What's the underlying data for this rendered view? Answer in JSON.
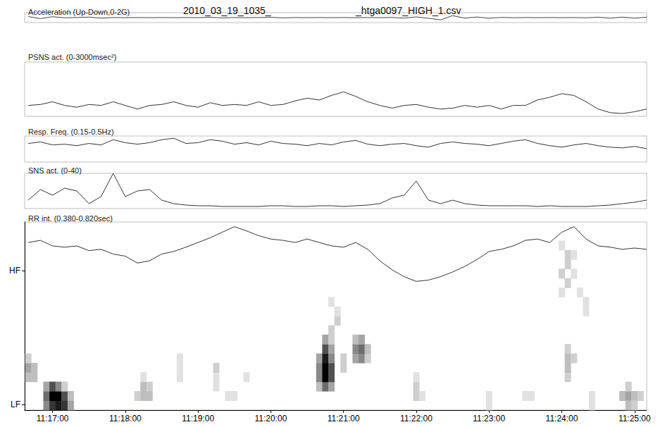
{
  "title": "2010_03_19_1035_",
  "subtitle": "_htga0097_HIGH_1.csv",
  "chart_data": [
    {
      "type": "line",
      "title": "Acceleration (Up-Down,0-2G)",
      "x": [
        40600,
        40610,
        40620,
        40630,
        40640,
        40650,
        40660,
        40670,
        40680,
        40690,
        40700,
        40710,
        40720,
        40730,
        40740,
        40750,
        40760,
        40770,
        40780,
        40790,
        40800,
        40810,
        40820,
        40830,
        40840,
        40850,
        40860,
        40870,
        40880,
        40890,
        40900,
        40910,
        40920,
        40930,
        40940,
        40950,
        40960,
        40970,
        40980,
        40990,
        41000,
        41010,
        41020,
        41030,
        41040,
        41050,
        41060,
        41070,
        41080,
        41090,
        41100,
        41110
      ],
      "values": [
        1.2,
        0.8,
        1.18,
        0.97,
        1.02,
        1.1,
        0.9,
        1.01,
        0.99,
        1.01,
        0.99,
        1.01,
        0.99,
        1.01,
        0.99,
        1.06,
        0.94,
        1.01,
        0.99,
        1.01,
        1.06,
        0.95,
        1.01,
        0.99,
        1.01,
        0.99,
        1.01,
        0.99,
        1.01,
        0.99,
        1.03,
        0.9,
        1.14,
        0.87,
        0.55,
        1.4,
        0.9,
        1.12,
        0.89,
        1.04,
        0.98,
        1.01,
        0.99,
        1.01,
        0.99,
        1.01,
        0.97,
        1.08,
        0.9,
        1.1,
        0.89,
        1.08
      ],
      "color": "#444444",
      "xlim": [
        40597,
        41110
      ],
      "ylim": [
        0,
        2
      ],
      "tick_labels": false
    },
    {
      "type": "line",
      "title": "PSNS act. (0-3000msec²)",
      "x": [
        40600,
        40610,
        40620,
        40630,
        40640,
        40650,
        40660,
        40670,
        40680,
        40690,
        40700,
        40710,
        40720,
        40730,
        40740,
        40750,
        40760,
        40770,
        40780,
        40790,
        40800,
        40810,
        40820,
        40830,
        40840,
        40850,
        40860,
        40870,
        40880,
        40890,
        40900,
        40910,
        40920,
        40930,
        40940,
        40950,
        40960,
        40970,
        40980,
        40990,
        41000,
        41010,
        41020,
        41030,
        41040,
        41050,
        41060,
        41070,
        41080,
        41090,
        41100,
        41110
      ],
      "values": [
        600,
        650,
        800,
        600,
        500,
        650,
        600,
        800,
        600,
        400,
        600,
        650,
        800,
        600,
        500,
        750,
        600,
        650,
        600,
        800,
        600,
        650,
        850,
        1000,
        900,
        1150,
        1350,
        1100,
        800,
        600,
        450,
        600,
        650,
        500,
        400,
        450,
        600,
        500,
        600,
        400,
        600,
        600,
        900,
        1050,
        1250,
        1150,
        800,
        400,
        200,
        150,
        250,
        400
      ],
      "color": "#333333",
      "xlim": [
        40597,
        41110
      ],
      "ylim": [
        0,
        3000
      ],
      "tick_labels": false
    },
    {
      "type": "line",
      "title": "Resp. Freq. (0.15-0.5Hz)",
      "x": [
        40600,
        40610,
        40620,
        40630,
        40640,
        40650,
        40660,
        40670,
        40680,
        40690,
        40700,
        40710,
        40720,
        40730,
        40740,
        40750,
        40760,
        40770,
        40780,
        40790,
        40800,
        40810,
        40820,
        40830,
        40840,
        40850,
        40860,
        40870,
        40880,
        40890,
        40900,
        40910,
        40920,
        40930,
        40940,
        40950,
        40960,
        40970,
        40980,
        40990,
        41000,
        41010,
        41020,
        41030,
        41040,
        41050,
        41060,
        41070,
        41080,
        41090,
        41100,
        41110
      ],
      "values": [
        0.4,
        0.42,
        0.38,
        0.39,
        0.37,
        0.4,
        0.38,
        0.45,
        0.41,
        0.39,
        0.41,
        0.45,
        0.47,
        0.4,
        0.41,
        0.45,
        0.43,
        0.39,
        0.41,
        0.38,
        0.43,
        0.4,
        0.39,
        0.37,
        0.4,
        0.38,
        0.42,
        0.44,
        0.39,
        0.37,
        0.39,
        0.4,
        0.37,
        0.35,
        0.4,
        0.42,
        0.4,
        0.39,
        0.37,
        0.4,
        0.43,
        0.45,
        0.4,
        0.37,
        0.35,
        0.38,
        0.4,
        0.37,
        0.35,
        0.34,
        0.36,
        0.33
      ],
      "color": "#333333",
      "xlim": [
        40597,
        41110
      ],
      "ylim": [
        0.15,
        0.5
      ],
      "tick_labels": false
    },
    {
      "type": "line",
      "title": "SNS act. (0-40)",
      "x": [
        40600,
        40610,
        40620,
        40630,
        40640,
        40650,
        40660,
        40670,
        40680,
        40690,
        40700,
        40710,
        40720,
        40730,
        40740,
        40750,
        40760,
        40770,
        40780,
        40790,
        40800,
        40810,
        40820,
        40830,
        40840,
        40850,
        40860,
        40870,
        40880,
        40890,
        40900,
        40910,
        40920,
        40930,
        40940,
        40950,
        40960,
        40970,
        40980,
        40990,
        41000,
        41010,
        41020,
        41030,
        41040,
        41050,
        41060,
        41070,
        41080,
        41090,
        41100,
        41110
      ],
      "values": [
        9.6,
        21.6,
        15.2,
        23.2,
        20,
        5.6,
        13.6,
        40,
        13.6,
        20,
        21.6,
        9.6,
        5.6,
        4,
        3.2,
        3.2,
        2.4,
        2.4,
        2.4,
        2.4,
        3.2,
        3.2,
        2.4,
        2.4,
        3.2,
        3.2,
        2.4,
        3.2,
        4,
        5.6,
        12,
        15.2,
        31.2,
        9.6,
        5.6,
        9.6,
        5.6,
        4,
        3.2,
        3.2,
        3.2,
        3.2,
        2.4,
        3.2,
        2.4,
        2.4,
        2.4,
        3.2,
        4,
        5.6,
        7.2,
        9.6
      ],
      "color": "#333333",
      "xlim": [
        40597,
        41110
      ],
      "ylim": [
        0,
        40
      ],
      "tick_labels": false
    },
    {
      "type": "line",
      "title": "RR int. (0.380-0.820sec)",
      "x": [
        40600,
        40610,
        40620,
        40630,
        40640,
        40650,
        40660,
        40670,
        40680,
        40690,
        40700,
        40710,
        40720,
        40730,
        40740,
        40750,
        40760,
        40770,
        40780,
        40790,
        40800,
        40810,
        40820,
        40830,
        40840,
        40850,
        40860,
        40870,
        40880,
        40890,
        40900,
        40910,
        40920,
        40930,
        40940,
        40950,
        40960,
        40970,
        40980,
        40990,
        41000,
        41010,
        41020,
        41030,
        41040,
        41050,
        41060,
        41070,
        41080,
        41090,
        41100,
        41110
      ],
      "values": [
        0.772,
        0.777,
        0.764,
        0.761,
        0.764,
        0.753,
        0.756,
        0.745,
        0.74,
        0.724,
        0.729,
        0.745,
        0.751,
        0.761,
        0.772,
        0.783,
        0.796,
        0.809,
        0.799,
        0.788,
        0.78,
        0.777,
        0.772,
        0.78,
        0.772,
        0.764,
        0.761,
        0.772,
        0.756,
        0.729,
        0.708,
        0.692,
        0.681,
        0.684,
        0.692,
        0.703,
        0.716,
        0.732,
        0.751,
        0.756,
        0.764,
        0.777,
        0.78,
        0.772,
        0.796,
        0.809,
        0.78,
        0.764,
        0.761,
        0.756,
        0.759,
        0.756
      ],
      "color": "#333333",
      "xlim": [
        40597,
        41110
      ],
      "ylim": [
        0.38,
        0.82
      ],
      "tick_labels": false
    },
    {
      "type": "heatmap",
      "cells": [
        [
          40615,
          0.0125,
          5
        ],
        [
          40620,
          0.0125,
          8
        ],
        [
          40625,
          0.0125,
          9
        ],
        [
          40630,
          0.0125,
          8
        ],
        [
          40635,
          0.0125,
          4
        ],
        [
          40615,
          0.0375,
          6
        ],
        [
          40620,
          0.0375,
          10
        ],
        [
          40625,
          0.0375,
          10
        ],
        [
          40630,
          0.0375,
          7
        ],
        [
          40635,
          0.0375,
          3
        ],
        [
          40615,
          0.0625,
          4
        ],
        [
          40620,
          0.0625,
          7
        ],
        [
          40625,
          0.0625,
          5
        ],
        [
          40630,
          0.0625,
          2
        ],
        [
          40600,
          0.0875,
          3
        ],
        [
          40605,
          0.0875,
          3
        ],
        [
          40600,
          0.1125,
          4
        ],
        [
          40605,
          0.1125,
          3
        ],
        [
          40600,
          0.1375,
          2
        ],
        [
          40690,
          0.0375,
          2
        ],
        [
          40695,
          0.0375,
          3
        ],
        [
          40700,
          0.0375,
          3
        ],
        [
          40695,
          0.0625,
          3
        ],
        [
          40700,
          0.0625,
          2
        ],
        [
          40695,
          0.0875,
          1
        ],
        [
          40725,
          0.0875,
          1
        ],
        [
          40725,
          0.1125,
          1
        ],
        [
          40725,
          0.1375,
          1
        ],
        [
          40755,
          0.0625,
          1
        ],
        [
          40755,
          0.0875,
          1
        ],
        [
          40755,
          0.1125,
          2
        ],
        [
          40765,
          0.0375,
          1
        ],
        [
          40770,
          0.0375,
          1
        ],
        [
          40780,
          0.0875,
          1
        ],
        [
          40840,
          0.0625,
          3
        ],
        [
          40845,
          0.0625,
          6
        ],
        [
          40850,
          0.0625,
          4
        ],
        [
          40840,
          0.0875,
          5
        ],
        [
          40845,
          0.0875,
          10
        ],
        [
          40850,
          0.0875,
          7
        ],
        [
          40840,
          0.1125,
          5
        ],
        [
          40845,
          0.1125,
          10
        ],
        [
          40850,
          0.1125,
          7
        ],
        [
          40840,
          0.1375,
          4
        ],
        [
          40845,
          0.1375,
          9
        ],
        [
          40850,
          0.1375,
          5
        ],
        [
          40845,
          0.1625,
          7
        ],
        [
          40850,
          0.1625,
          4
        ],
        [
          40845,
          0.1875,
          4
        ],
        [
          40850,
          0.1875,
          2
        ],
        [
          40850,
          0.2125,
          2
        ],
        [
          40855,
          0.2375,
          2
        ],
        [
          40855,
          0.2625,
          1
        ],
        [
          40850,
          0.2875,
          1
        ],
        [
          40860,
          0.1125,
          2
        ],
        [
          40860,
          0.1375,
          2
        ],
        [
          40870,
          0.1375,
          4
        ],
        [
          40875,
          0.1375,
          5
        ],
        [
          40880,
          0.1375,
          2
        ],
        [
          40870,
          0.1625,
          5
        ],
        [
          40875,
          0.1625,
          6
        ],
        [
          40880,
          0.1625,
          3
        ],
        [
          40870,
          0.1875,
          3
        ],
        [
          40875,
          0.1875,
          4
        ],
        [
          40920,
          0.0375,
          2
        ],
        [
          40920,
          0.0625,
          2
        ],
        [
          40925,
          0.0375,
          1
        ],
        [
          40920,
          0.0875,
          1
        ],
        [
          40980,
          0.0125,
          1
        ],
        [
          40980,
          0.0375,
          1
        ],
        [
          41010,
          0.0375,
          1
        ],
        [
          41015,
          0.0375,
          1
        ],
        [
          41040,
          0.3125,
          1
        ],
        [
          41045,
          0.3375,
          2
        ],
        [
          41040,
          0.3625,
          2
        ],
        [
          41045,
          0.3875,
          2
        ],
        [
          41045,
          0.4125,
          2
        ],
        [
          41040,
          0.4375,
          1
        ],
        [
          41050,
          0.3625,
          1
        ],
        [
          41050,
          0.4125,
          1
        ],
        [
          41045,
          0.0875,
          2
        ],
        [
          41045,
          0.1125,
          3
        ],
        [
          41045,
          0.1375,
          3
        ],
        [
          41045,
          0.1625,
          2
        ],
        [
          41050,
          0.1375,
          2
        ],
        [
          41060,
          0.2625,
          1
        ],
        [
          41060,
          0.2875,
          1
        ],
        [
          41055,
          0.3125,
          1
        ],
        [
          41065,
          0.0125,
          1
        ],
        [
          41065,
          0.0375,
          1
        ],
        [
          41090,
          0.0375,
          3
        ],
        [
          41095,
          0.0375,
          4
        ],
        [
          41100,
          0.0375,
          3
        ],
        [
          41095,
          0.0125,
          3
        ],
        [
          41100,
          0.0125,
          2
        ],
        [
          41095,
          0.0625,
          2
        ],
        [
          41105,
          0.0375,
          2
        ]
      ],
      "zlim": [
        0,
        10
      ],
      "xlim": [
        40597,
        41110
      ],
      "ylim": [
        0,
        0.5
      ],
      "xticks": [
        {
          "value": 40620,
          "label": "11:17:00"
        },
        {
          "value": 40680,
          "label": "11:18:00"
        },
        {
          "value": 40740,
          "label": "11:19:00"
        },
        {
          "value": 40800,
          "label": "11:20:00"
        },
        {
          "value": 40860,
          "label": "11:21:00"
        },
        {
          "value": 40920,
          "label": "11:22:00"
        },
        {
          "value": 40980,
          "label": "11:23:00"
        },
        {
          "value": 41040,
          "label": "11:24:00"
        },
        {
          "value": 41100,
          "label": "11:25:00"
        }
      ],
      "yticks": [
        {
          "value": 0.015,
          "label": "LF"
        },
        {
          "value": 0.37,
          "label": "HF"
        }
      ]
    }
  ]
}
